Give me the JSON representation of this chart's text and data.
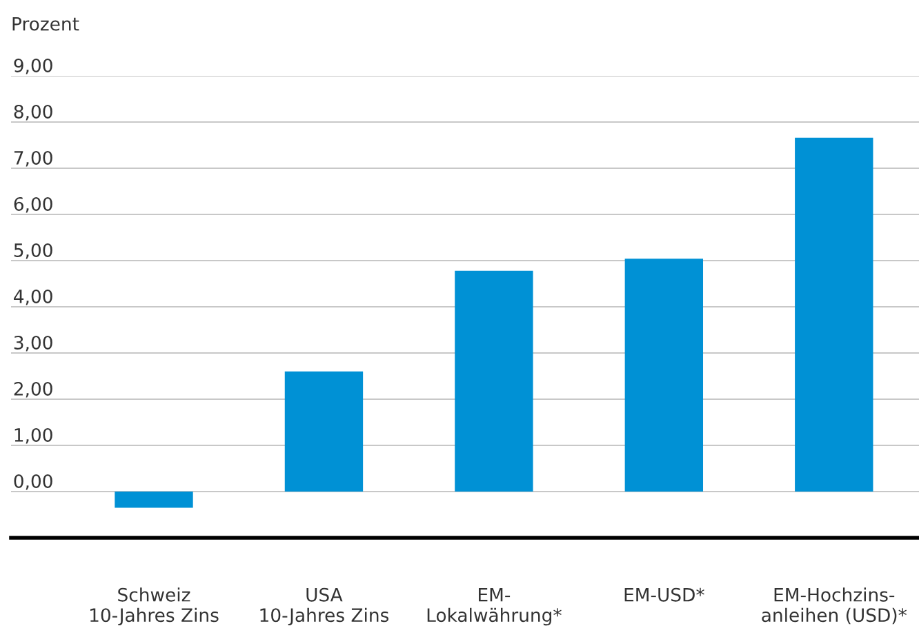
{
  "chart_data": {
    "type": "bar",
    "ylabel": "Prozent",
    "categories": [
      "Schweiz\n10-Jahres Zins",
      "USA\n10-Jahres Zins",
      "EM-\nLokalwährung*",
      "EM-USD*",
      "EM-Hochzins-\nanleihen (USD)*"
    ],
    "values": [
      -0.35,
      2.6,
      4.78,
      5.04,
      7.66
    ],
    "color": "#0091d5",
    "ylim": [
      -1,
      9
    ],
    "yticks": [
      {
        "value": 0,
        "label": "0,00"
      },
      {
        "value": 1,
        "label": "1,00"
      },
      {
        "value": 2,
        "label": "2,00"
      },
      {
        "value": 3,
        "label": "3,00"
      },
      {
        "value": 4,
        "label": "4,00"
      },
      {
        "value": 5,
        "label": "5,00"
      },
      {
        "value": 6,
        "label": "6,00"
      },
      {
        "value": 7,
        "label": "7,00"
      },
      {
        "value": 8,
        "label": "8,00"
      },
      {
        "value": 9,
        "label": "9,00"
      }
    ],
    "grid": "y"
  }
}
